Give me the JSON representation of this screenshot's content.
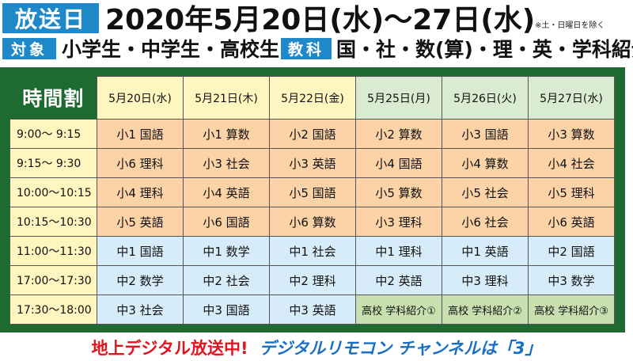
{
  "header": {
    "broadcast_label": "放送日",
    "broadcast_dates": "2020年5月20日(水)～27日(水)",
    "note": "※土・日曜日を除く",
    "target_label": "対象",
    "target_value": "小学生・中学生・高校生",
    "subject_label": "教科",
    "subject_value": "国・社・数(算)・理・英・学科紹介"
  },
  "timetable": {
    "title": "時間割",
    "days": [
      "5月20日(水)",
      "5月21日(木)",
      "5月22日(金)",
      "5月25日(月)",
      "5月26日(火)",
      "5月27日(水)"
    ],
    "rows": [
      {
        "time": "9:00～ 9:15",
        "cells": [
          "小1 国語",
          "小1 算数",
          "小2 国語",
          "小2 算数",
          "小3 国語",
          "小3 算数"
        ]
      },
      {
        "time": "9:15～ 9:30",
        "cells": [
          "小6 理科",
          "小3 社会",
          "小3 英語",
          "小4 国語",
          "小4 算数",
          "小4 社会"
        ]
      },
      {
        "time": "10:00～10:15",
        "cells": [
          "小4 理科",
          "小4 英語",
          "小5 国語",
          "小5 算数",
          "小5 社会",
          "小5 理科"
        ]
      },
      {
        "time": "10:15～10:30",
        "cells": [
          "小5 英語",
          "小6 国語",
          "小6 算数",
          "小3 理科",
          "小6 社会",
          "小6 英語"
        ]
      },
      {
        "time": "11:00～11:30",
        "cells": [
          "中1 国語",
          "中1 数学",
          "中1 社会",
          "中1 理科",
          "中1 英語",
          "中2 国語"
        ]
      },
      {
        "time": "17:00～17:30",
        "cells": [
          "中2 数学",
          "中2 社会",
          "中2 理科",
          "中2 英語",
          "中3 理科",
          "中3 数学"
        ]
      },
      {
        "time": "17:30～18:00",
        "cells": [
          "中3 社会",
          "中3 国語",
          "中3 英語",
          "高校 学科紹介①",
          "高校 学科紹介②",
          "高校 学科紹介③"
        ]
      }
    ]
  },
  "footer": {
    "red_text": "地上デジタル放送中!",
    "blue_text": "デジタルリモコン チャンネルは「3」"
  },
  "colors": {
    "header_blue": "#1e88c8",
    "frame_green": "#1d6b30",
    "time_yellow": "#fff5bf",
    "elementary_orange": "#fbd3a7",
    "junior_high_blue": "#d6ecf8",
    "high_school_green": "#c8e0b0",
    "footer_red": "#e0141e",
    "footer_blue": "#1a6fc4"
  }
}
